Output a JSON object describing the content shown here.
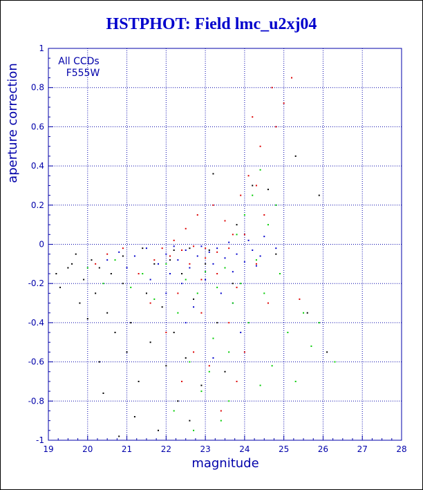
{
  "colors": {
    "axis": "#0000aa",
    "grid": "#0000aa",
    "title": "#0000cc",
    "black": "#000000",
    "red": "#dd0000",
    "blue": "#0000cc",
    "green": "#00cc00"
  },
  "chart_data": {
    "type": "scatter",
    "title": "HSTPHOT: Field lmc_u2xj04",
    "xlabel": "magnitude",
    "ylabel": "aperture correction",
    "xlim": [
      19,
      28
    ],
    "ylim": [
      -1,
      1
    ],
    "xticks": [
      19,
      20,
      21,
      22,
      23,
      24,
      25,
      26,
      27,
      28
    ],
    "xtick_labels": [
      "19",
      "20",
      "21",
      "22",
      "23",
      "24",
      "25",
      "26",
      "27",
      "28"
    ],
    "yticks": [
      -1,
      -0.8,
      -0.6,
      -0.4,
      -0.2,
      0,
      0.2,
      0.4,
      0.6,
      0.8,
      1
    ],
    "ytick_labels": [
      "-1",
      "-0.8",
      "-0.6",
      "-0.4",
      "-0.2",
      "0",
      "0.2",
      "0.4",
      "0.6",
      "0.8",
      "1"
    ],
    "grid": true,
    "annotations": [
      "All CCDs",
      "F555W"
    ],
    "series": [
      {
        "color": "#000000",
        "points": [
          [
            19.2,
            -0.15
          ],
          [
            19.3,
            -0.22
          ],
          [
            19.5,
            -0.12
          ],
          [
            19.6,
            -0.1
          ],
          [
            19.7,
            -0.05
          ],
          [
            19.8,
            -0.3
          ],
          [
            19.9,
            -0.18
          ],
          [
            20.0,
            -0.38
          ],
          [
            20.1,
            -0.08
          ],
          [
            20.2,
            -0.25
          ],
          [
            20.3,
            -0.6
          ],
          [
            20.4,
            -0.76
          ],
          [
            20.5,
            -0.35
          ],
          [
            20.6,
            -0.15
          ],
          [
            20.7,
            -0.45
          ],
          [
            20.8,
            -0.98
          ],
          [
            20.9,
            -0.2
          ],
          [
            21.0,
            -0.55
          ],
          [
            21.1,
            -0.4
          ],
          [
            21.2,
            -0.88
          ],
          [
            21.3,
            -0.7
          ],
          [
            21.5,
            -0.25
          ],
          [
            21.6,
            -0.5
          ],
          [
            21.8,
            -0.95
          ],
          [
            21.9,
            -0.32
          ],
          [
            22.0,
            -0.62
          ],
          [
            22.1,
            -0.08
          ],
          [
            22.2,
            -0.45
          ],
          [
            22.3,
            -0.8
          ],
          [
            22.4,
            -0.15
          ],
          [
            22.5,
            -0.58
          ],
          [
            22.6,
            -0.9
          ],
          [
            22.7,
            -0.28
          ],
          [
            22.9,
            -0.72
          ],
          [
            23.0,
            -0.1
          ],
          [
            23.2,
            0.36
          ],
          [
            23.3,
            -0.4
          ],
          [
            23.5,
            -0.65
          ],
          [
            23.7,
            -0.2
          ],
          [
            23.8,
            0.1
          ],
          [
            24.2,
            0.3
          ],
          [
            24.6,
            0.28
          ],
          [
            24.8,
            -0.05
          ],
          [
            25.3,
            0.45
          ],
          [
            25.6,
            -0.35
          ],
          [
            25.9,
            0.25
          ],
          [
            26.1,
            -0.55
          ],
          [
            20.9,
            -0.06
          ],
          [
            21.4,
            -0.02
          ],
          [
            22.2,
            -0.03
          ],
          [
            22.6,
            -0.02
          ],
          [
            23.1,
            -0.03
          ],
          [
            20.3,
            -0.12
          ],
          [
            21.7,
            -0.1
          ]
        ]
      },
      {
        "color": "#dd0000",
        "points": [
          [
            20.2,
            -0.1
          ],
          [
            20.5,
            -0.05
          ],
          [
            20.9,
            -0.02
          ],
          [
            21.3,
            -0.15
          ],
          [
            21.6,
            -0.3
          ],
          [
            21.9,
            -0.02
          ],
          [
            22.0,
            -0.45
          ],
          [
            22.2,
            0.02
          ],
          [
            22.3,
            -0.25
          ],
          [
            22.4,
            -0.7
          ],
          [
            22.5,
            0.08
          ],
          [
            22.6,
            -0.1
          ],
          [
            22.7,
            -0.55
          ],
          [
            22.8,
            0.15
          ],
          [
            22.9,
            -0.35
          ],
          [
            23.0,
            -0.02
          ],
          [
            23.1,
            -0.62
          ],
          [
            23.2,
            0.2
          ],
          [
            23.3,
            -0.15
          ],
          [
            23.4,
            -0.85
          ],
          [
            23.5,
            0.12
          ],
          [
            23.6,
            -0.4
          ],
          [
            23.7,
            0.05
          ],
          [
            23.8,
            -0.22
          ],
          [
            23.9,
            0.25
          ],
          [
            24.0,
            -0.55
          ],
          [
            24.1,
            0.35
          ],
          [
            24.2,
            0.65
          ],
          [
            24.3,
            -0.1
          ],
          [
            24.4,
            0.5
          ],
          [
            24.5,
            0.15
          ],
          [
            24.6,
            -0.3
          ],
          [
            24.7,
            0.8
          ],
          [
            24.8,
            0.6
          ],
          [
            25.0,
            0.72
          ],
          [
            25.2,
            0.85
          ],
          [
            25.4,
            -0.28
          ],
          [
            22.1,
            -0.06
          ],
          [
            22.4,
            -0.03
          ],
          [
            22.7,
            -0.01
          ],
          [
            23.0,
            -0.07
          ],
          [
            23.3,
            -0.04
          ],
          [
            23.6,
            -0.02
          ],
          [
            21.7,
            -0.08
          ],
          [
            24.0,
            0.05
          ],
          [
            24.3,
            0.3
          ],
          [
            22.9,
            -0.18
          ],
          [
            23.8,
            -0.7
          ]
        ]
      },
      {
        "color": "#0000cc",
        "points": [
          [
            20.5,
            -0.08
          ],
          [
            20.8,
            -0.04
          ],
          [
            21.0,
            -0.12
          ],
          [
            21.2,
            -0.06
          ],
          [
            21.5,
            -0.02
          ],
          [
            21.8,
            -0.1
          ],
          [
            22.0,
            -0.05
          ],
          [
            22.1,
            -0.15
          ],
          [
            22.2,
            -0.01
          ],
          [
            22.3,
            -0.08
          ],
          [
            22.4,
            -0.2
          ],
          [
            22.5,
            -0.03
          ],
          [
            22.6,
            -0.12
          ],
          [
            22.7,
            -0.32
          ],
          [
            22.8,
            -0.06
          ],
          [
            22.9,
            -0.01
          ],
          [
            23.0,
            -0.18
          ],
          [
            23.1,
            -0.04
          ],
          [
            23.2,
            -0.1
          ],
          [
            23.3,
            -0.02
          ],
          [
            23.4,
            -0.25
          ],
          [
            23.5,
            -0.07
          ],
          [
            23.6,
            0.01
          ],
          [
            23.7,
            -0.14
          ],
          [
            23.8,
            -0.05
          ],
          [
            23.9,
            -0.45
          ],
          [
            24.0,
            -0.09
          ],
          [
            24.1,
            0.02
          ],
          [
            24.2,
            -0.03
          ],
          [
            24.3,
            -0.11
          ],
          [
            24.5,
            0.04
          ],
          [
            24.8,
            -0.02
          ],
          [
            22.5,
            -0.4
          ],
          [
            23.2,
            -0.58
          ],
          [
            22.0,
            -0.25
          ],
          [
            23.7,
            -0.3
          ],
          [
            21.6,
            -0.18
          ],
          [
            24.4,
            -0.06
          ]
        ]
      },
      {
        "color": "#00cc00",
        "points": [
          [
            20.0,
            -0.12
          ],
          [
            20.4,
            -0.2
          ],
          [
            20.7,
            -0.08
          ],
          [
            21.1,
            -0.22
          ],
          [
            21.4,
            -0.15
          ],
          [
            21.7,
            -0.28
          ],
          [
            22.0,
            -0.1
          ],
          [
            22.3,
            -0.35
          ],
          [
            22.5,
            -0.18
          ],
          [
            22.6,
            -0.6
          ],
          [
            22.8,
            -0.25
          ],
          [
            22.9,
            -0.75
          ],
          [
            23.0,
            -0.14
          ],
          [
            23.2,
            -0.48
          ],
          [
            23.3,
            -0.22
          ],
          [
            23.4,
            -0.9
          ],
          [
            23.5,
            -0.12
          ],
          [
            23.6,
            -0.55
          ],
          [
            23.7,
            -0.3
          ],
          [
            23.8,
            0.05
          ],
          [
            23.9,
            -0.2
          ],
          [
            24.0,
            0.15
          ],
          [
            24.1,
            -0.4
          ],
          [
            24.2,
            0.25
          ],
          [
            24.3,
            -0.08
          ],
          [
            24.4,
            0.38
          ],
          [
            24.5,
            -0.25
          ],
          [
            24.6,
            0.1
          ],
          [
            24.7,
            -0.62
          ],
          [
            24.8,
            0.2
          ],
          [
            24.9,
            -0.15
          ],
          [
            25.1,
            -0.45
          ],
          [
            25.3,
            -0.7
          ],
          [
            25.5,
            -0.35
          ],
          [
            25.7,
            -0.52
          ],
          [
            25.9,
            -0.4
          ],
          [
            26.3,
            -0.6
          ],
          [
            22.2,
            -0.85
          ],
          [
            22.7,
            -0.95
          ],
          [
            23.1,
            -0.65
          ],
          [
            23.6,
            -0.8
          ],
          [
            24.4,
            -0.72
          ]
        ]
      }
    ]
  }
}
